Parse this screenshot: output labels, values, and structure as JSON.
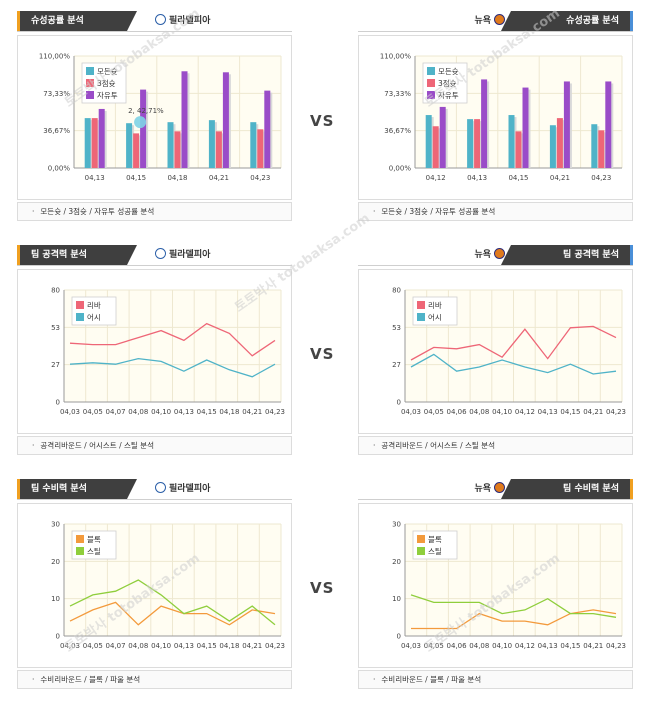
{
  "vs_label": "VS",
  "watermark": "토토박사 totobaksa.com",
  "panels": [
    {
      "section_title": "슈성공률 분석",
      "team": "필라델피아",
      "side": "left",
      "caption": "모든슛 / 3점슛 / 자유투 성공률 분석",
      "chart": {
        "type": "bar",
        "categories": [
          "04,13",
          "04,15",
          "04,18",
          "04,21",
          "04,23"
        ],
        "ytick_labels": [
          "0,00%",
          "36,67%",
          "73,33%",
          "110,00%"
        ],
        "ylim": [
          0,
          110
        ],
        "series": [
          {
            "name": "모든슛",
            "color": "#4fb3c8",
            "values": [
              49,
              44,
              45,
              47,
              45
            ]
          },
          {
            "name": "3점슛",
            "color": "#ee6677",
            "values": [
              49,
              34,
              36,
              36,
              38
            ]
          },
          {
            "name": "자유투",
            "color": "#9a4cc8",
            "values": [
              58,
              77,
              95,
              94,
              76
            ]
          }
        ],
        "tooltip": {
          "text": "2, 42,71%"
        }
      }
    },
    {
      "section_title": "슈성공률 분석",
      "team": "뉴욕",
      "side": "right",
      "caption": "모든슛 / 3점슛 / 자유투 성공률 분석",
      "chart": {
        "type": "bar",
        "categories": [
          "04,12",
          "04,13",
          "04,15",
          "04,21",
          "04,23"
        ],
        "ytick_labels": [
          "0,00%",
          "36,67%",
          "73,33%",
          "110,00%"
        ],
        "ylim": [
          0,
          110
        ],
        "series": [
          {
            "name": "모든슛",
            "color": "#4fb3c8",
            "values": [
              52,
              48,
              52,
              42,
              43
            ]
          },
          {
            "name": "3점슛",
            "color": "#ee6677",
            "values": [
              41,
              48,
              36,
              49,
              37
            ]
          },
          {
            "name": "자유투",
            "color": "#9a4cc8",
            "values": [
              60,
              87,
              79,
              85,
              85
            ]
          }
        ]
      }
    },
    {
      "section_title": "팀 공격력 분석",
      "team": "필라델피아",
      "side": "left",
      "caption": "공격리바운드 / 어시스트 / 스틸 분석",
      "chart": {
        "type": "line",
        "categories": [
          "04,03",
          "04,05",
          "04,07",
          "04,08",
          "04,10",
          "04,13",
          "04,15",
          "04,18",
          "04,21",
          "04,23"
        ],
        "ytick_labels": [
          "0",
          "27",
          "53",
          "80"
        ],
        "ylim": [
          0,
          80
        ],
        "series": [
          {
            "name": "리바",
            "color": "#ee6677",
            "values": [
              42,
              41,
              41,
              46,
              51,
              44,
              56,
              49,
              33,
              44
            ]
          },
          {
            "name": "어시",
            "color": "#4fb3c8",
            "values": [
              27,
              28,
              27,
              31,
              29,
              22,
              30,
              23,
              18,
              27
            ]
          }
        ]
      }
    },
    {
      "section_title": "팀 공격력 분석",
      "team": "뉴욕",
      "side": "right",
      "caption": "공격리바운드 / 어시스트 / 스틸 분석",
      "chart": {
        "type": "line",
        "categories": [
          "04,03",
          "04,05",
          "04,06",
          "04,08",
          "04,10",
          "04,12",
          "04,13",
          "04,15",
          "04,21",
          "04,23"
        ],
        "ytick_labels": [
          "0",
          "27",
          "53",
          "80"
        ],
        "ylim": [
          0,
          80
        ],
        "series": [
          {
            "name": "리바",
            "color": "#ee6677",
            "values": [
              30,
              39,
              38,
              41,
              32,
              52,
              31,
              53,
              54,
              46
            ]
          },
          {
            "name": "어시",
            "color": "#4fb3c8",
            "values": [
              25,
              34,
              22,
              25,
              30,
              25,
              21,
              27,
              20,
              22
            ]
          }
        ]
      }
    },
    {
      "section_title": "팀 수비력 분석",
      "team": "필라델피아",
      "side": "left",
      "caption": "수비리바운드 / 블록 / 파울 분석",
      "chart": {
        "type": "line",
        "categories": [
          "04,03",
          "04,05",
          "04,07",
          "04,08",
          "04,10",
          "04,13",
          "04,15",
          "04,18",
          "04,21",
          "04,23"
        ],
        "ytick_labels": [
          "0",
          "10",
          "20",
          "30"
        ],
        "ylim": [
          0,
          30
        ],
        "series": [
          {
            "name": "블록",
            "color": "#f39a3c",
            "values": [
              4,
              7,
              9,
              3,
              8,
              6,
              6,
              3,
              7,
              6
            ]
          },
          {
            "name": "스틸",
            "color": "#8fce3c",
            "values": [
              8,
              11,
              12,
              15,
              11,
              6,
              8,
              4,
              8,
              3
            ]
          }
        ]
      }
    },
    {
      "section_title": "팀 수비력 분석",
      "team": "뉴욕",
      "side": "right",
      "caption": "수비리바운드 / 블록 / 파울 분석",
      "chart": {
        "type": "line",
        "categories": [
          "04,03",
          "04,05",
          "04,06",
          "04,08",
          "04,10",
          "04,12",
          "04,13",
          "04,15",
          "04,21",
          "04,23"
        ],
        "ytick_labels": [
          "0",
          "10",
          "20",
          "30"
        ],
        "ylim": [
          0,
          30
        ],
        "series": [
          {
            "name": "블록",
            "color": "#f39a3c",
            "values": [
              2,
              2,
              2,
              6,
              4,
              4,
              3,
              6,
              7,
              6
            ]
          },
          {
            "name": "스틸",
            "color": "#8fce3c",
            "values": [
              11,
              9,
              9,
              9,
              6,
              7,
              10,
              6,
              6,
              5
            ]
          }
        ]
      }
    }
  ]
}
